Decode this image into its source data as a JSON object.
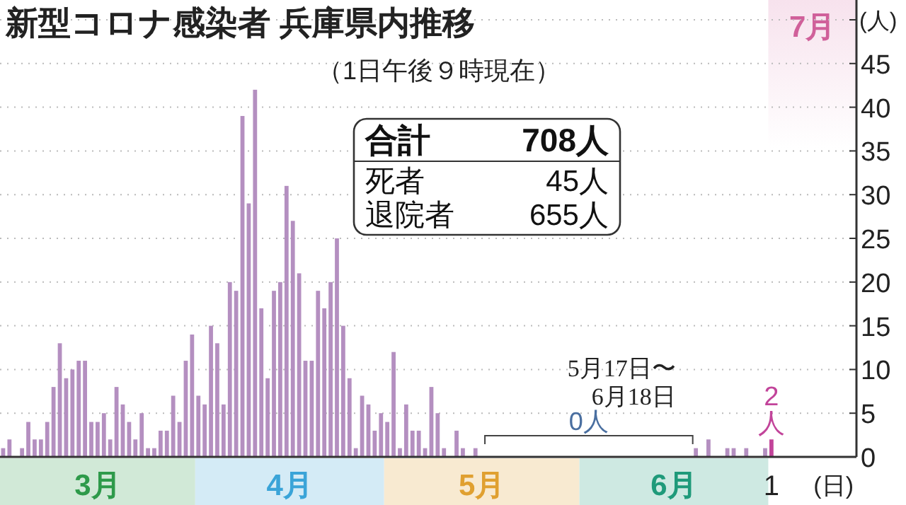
{
  "chart_data": {
    "type": "bar",
    "title": "新型コロナ感染者 兵庫県内推移",
    "subtitle": "（1日午後９時現在）",
    "ylabel": "(人)",
    "xlabel": "(日)",
    "annotations": [
      "合計 708人",
      "死者 45人",
      "退院者 655人",
      "5月17日〜",
      "6月18日",
      "0人",
      "3月",
      "4月",
      "5月",
      "6月",
      "7月"
    ],
    "categories": [
      null,
      null,
      null,
      null,
      null,
      null,
      null,
      null,
      null,
      null,
      null,
      null,
      null,
      null,
      null,
      null,
      null,
      null,
      null,
      null,
      null,
      null,
      null,
      null,
      null,
      null,
      null,
      null,
      null,
      null,
      null,
      null,
      null,
      null,
      null,
      null,
      null,
      null,
      null,
      null,
      null,
      null,
      null,
      null,
      null,
      null,
      null,
      null,
      null,
      null,
      null,
      null,
      null,
      null,
      null,
      null,
      null,
      null,
      null,
      null,
      null,
      null,
      null,
      null,
      null,
      null,
      null,
      null,
      null,
      null,
      null,
      null,
      null,
      null,
      null,
      null,
      null,
      null,
      null,
      null,
      null,
      null,
      null,
      null,
      null,
      null,
      null,
      null,
      null,
      null,
      null,
      null,
      null,
      null,
      null,
      null,
      null,
      null,
      null,
      null,
      null,
      null,
      null,
      null,
      null,
      null,
      null,
      null,
      null,
      null,
      null,
      null,
      null,
      null,
      null,
      null,
      null,
      null,
      null,
      null,
      null,
      null,
      "1",
      null,
      null,
      null,
      null,
      null,
      null,
      null,
      null,
      null,
      null,
      null,
      null,
      null
    ],
    "ylim": [
      0,
      50
    ],
    "yticks": [
      0,
      5,
      10,
      15,
      20,
      25,
      30,
      35,
      40,
      45,
      {
        "value": 50,
        "label": null
      }
    ],
    "grid": "y",
    "series": [
      {
        "colors": [
          "#b48fc0",
          "#b48fc0",
          "#b48fc0",
          "#b48fc0",
          "#b48fc0",
          "#b48fc0",
          "#b48fc0",
          "#b48fc0",
          "#b48fc0",
          "#b48fc0",
          "#b48fc0",
          "#b48fc0",
          "#b48fc0",
          "#b48fc0",
          "#b48fc0",
          "#b48fc0",
          "#b48fc0",
          "#b48fc0",
          "#b48fc0",
          "#b48fc0",
          "#b48fc0",
          "#b48fc0",
          "#b48fc0",
          "#b48fc0",
          "#b48fc0",
          "#b48fc0",
          "#b48fc0",
          "#b48fc0",
          "#b48fc0",
          "#b48fc0",
          "#b48fc0",
          "#b48fc0",
          "#b48fc0",
          "#b48fc0",
          "#b48fc0",
          "#b48fc0",
          "#b48fc0",
          "#b48fc0",
          "#b48fc0",
          "#b48fc0",
          "#b48fc0",
          "#b48fc0",
          "#b48fc0",
          "#b48fc0",
          "#b48fc0",
          "#b48fc0",
          "#b48fc0",
          "#b48fc0",
          "#b48fc0",
          "#b48fc0",
          "#b48fc0",
          "#b48fc0",
          "#b48fc0",
          "#b48fc0",
          "#b48fc0",
          "#b48fc0",
          "#b48fc0",
          "#b48fc0",
          "#b48fc0",
          "#b48fc0",
          "#b48fc0",
          "#b48fc0",
          "#b48fc0",
          "#b48fc0",
          "#b48fc0",
          "#b48fc0",
          "#b48fc0",
          "#b48fc0",
          "#b48fc0",
          "#b48fc0",
          "#b48fc0",
          "#b48fc0",
          "#b48fc0",
          "#b48fc0",
          "#b48fc0",
          "#b48fc0",
          "#b48fc0",
          "#b48fc0",
          "#b48fc0",
          "#b48fc0",
          "#b48fc0",
          "#b48fc0",
          "#b48fc0",
          "#b48fc0",
          "#b48fc0",
          "#b48fc0",
          "#b48fc0",
          "#b48fc0",
          "#b48fc0",
          "#b48fc0",
          "#b48fc0",
          "#b48fc0",
          "#b48fc0",
          "#b48fc0",
          "#b48fc0",
          "#b48fc0",
          "#b48fc0",
          "#b48fc0",
          "#b48fc0",
          "#b48fc0",
          "#b48fc0",
          "#b48fc0",
          "#b48fc0",
          "#b48fc0",
          "#b48fc0",
          "#b48fc0",
          "#b48fc0",
          "#b48fc0",
          "#b48fc0",
          "#b48fc0",
          "#b48fc0",
          "#b48fc0",
          "#b48fc0",
          "#b48fc0",
          "#b48fc0",
          "#b48fc0",
          "#b48fc0",
          "#b48fc0",
          "#b48fc0",
          "#b48fc0",
          "#b48fc0",
          "#b48fc0",
          "#c2449a",
          null,
          null,
          null,
          null,
          null,
          null,
          null,
          null,
          null,
          null,
          null,
          null,
          null
        ],
        "values": [
          1,
          2,
          0,
          1,
          4,
          2,
          2,
          4,
          8,
          13,
          9,
          10,
          11,
          11,
          4,
          4,
          5,
          2,
          8,
          6,
          4,
          2,
          5,
          1,
          1,
          3,
          3,
          7,
          4,
          11,
          14,
          7,
          6,
          15,
          13,
          6,
          20,
          19,
          39,
          29,
          42,
          17,
          9,
          19,
          20,
          31,
          27,
          21,
          11,
          11,
          19,
          17,
          20,
          25,
          15,
          9,
          1,
          7,
          6,
          3,
          5,
          4,
          12,
          1,
          6,
          3,
          3,
          1,
          8,
          5,
          1,
          0,
          3,
          1,
          0,
          1,
          0,
          0,
          0,
          0,
          0,
          0,
          0,
          0,
          0,
          0,
          0,
          0,
          0,
          0,
          0,
          0,
          0,
          0,
          0,
          0,
          0,
          0,
          0,
          0,
          0,
          0,
          0,
          0,
          0,
          0,
          0,
          0,
          0,
          0,
          1,
          0,
          2,
          0,
          0,
          1,
          1,
          0,
          1,
          0,
          0,
          1,
          2,
          null,
          null,
          null,
          null,
          null,
          null,
          null,
          null,
          null,
          null,
          null,
          null,
          null
        ],
        "value_labels": [
          null,
          null,
          null,
          null,
          null,
          null,
          null,
          null,
          null,
          null,
          null,
          null,
          null,
          null,
          null,
          null,
          null,
          null,
          null,
          null,
          null,
          null,
          null,
          null,
          null,
          null,
          null,
          null,
          null,
          null,
          null,
          null,
          null,
          null,
          null,
          null,
          null,
          null,
          null,
          null,
          null,
          null,
          null,
          null,
          null,
          null,
          null,
          null,
          null,
          null,
          null,
          null,
          null,
          null,
          null,
          null,
          null,
          null,
          null,
          null,
          null,
          null,
          null,
          null,
          null,
          null,
          null,
          null,
          null,
          null,
          null,
          null,
          null,
          null,
          null,
          null,
          null,
          null,
          null,
          null,
          null,
          null,
          null,
          null,
          null,
          null,
          null,
          null,
          null,
          null,
          null,
          null,
          null,
          null,
          null,
          null,
          null,
          null,
          null,
          null,
          null,
          null,
          null,
          null,
          null,
          null,
          null,
          null,
          null,
          null,
          null,
          null,
          null,
          null,
          null,
          null,
          null,
          null,
          null,
          null,
          null,
          null,
          "2人",
          null,
          null,
          null,
          null,
          null,
          null,
          null,
          null,
          null,
          null,
          null,
          null,
          null
        ]
      }
    ]
  }
}
